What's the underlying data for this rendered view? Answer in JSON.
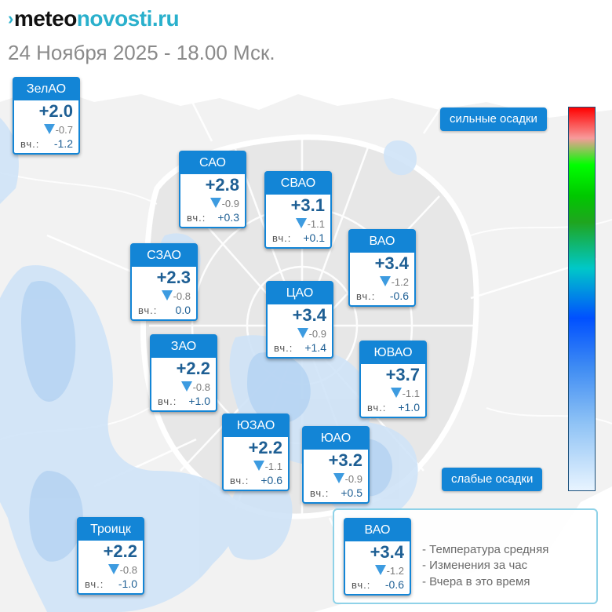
{
  "header": {
    "logo_mark": "›",
    "logo_part1": "meteo",
    "logo_part2": "novosti.ru",
    "subtitle": "24 Ноября 2025 - 18.00 Мск."
  },
  "labels": {
    "yesterday_prefix": "вч.:"
  },
  "districts": [
    {
      "name": "ЗелАО",
      "temp": "+2.0",
      "change": "-0.7",
      "yesterday": "-1.2"
    },
    {
      "name": "САО",
      "temp": "+2.8",
      "change": "-0.9",
      "yesterday": "+0.3"
    },
    {
      "name": "СВАО",
      "temp": "+3.1",
      "change": "-1.1",
      "yesterday": "+0.1"
    },
    {
      "name": "СЗАО",
      "temp": "+2.3",
      "change": "-0.8",
      "yesterday": "0.0"
    },
    {
      "name": "ВАО",
      "temp": "+3.4",
      "change": "-1.2",
      "yesterday": "-0.6"
    },
    {
      "name": "ЦАО",
      "temp": "+3.4",
      "change": "-0.9",
      "yesterday": "+1.4"
    },
    {
      "name": "ЗАО",
      "temp": "+2.2",
      "change": "-0.8",
      "yesterday": "+1.0"
    },
    {
      "name": "ЮВАО",
      "temp": "+3.7",
      "change": "-1.1",
      "yesterday": "+1.0"
    },
    {
      "name": "ЮЗАО",
      "temp": "+2.2",
      "change": "-1.1",
      "yesterday": "+0.6"
    },
    {
      "name": "ЮАО",
      "temp": "+3.2",
      "change": "-0.9",
      "yesterday": "+0.5"
    },
    {
      "name": "Троицк",
      "temp": "+2.2",
      "change": "-0.8",
      "yesterday": "-1.0"
    }
  ],
  "precip_legend": {
    "strong": "сильные осадки",
    "weak": "слабые осадки"
  },
  "key": {
    "sample": {
      "name": "ВАО",
      "temp": "+3.4",
      "change": "-1.2",
      "yesterday": "-0.6"
    },
    "lines": [
      "- Температура средняя",
      "- Изменения за час",
      "- Вчера в это время"
    ]
  },
  "colors": {
    "card_blue": "#1385d6",
    "temp_text": "#1e5f94",
    "change_arrow": "#3d9be0",
    "logo_accent": "#2ab0cc",
    "precip_light": "#cfe3f7"
  },
  "icons": {
    "change_indicator": "triangle-down-icon"
  }
}
